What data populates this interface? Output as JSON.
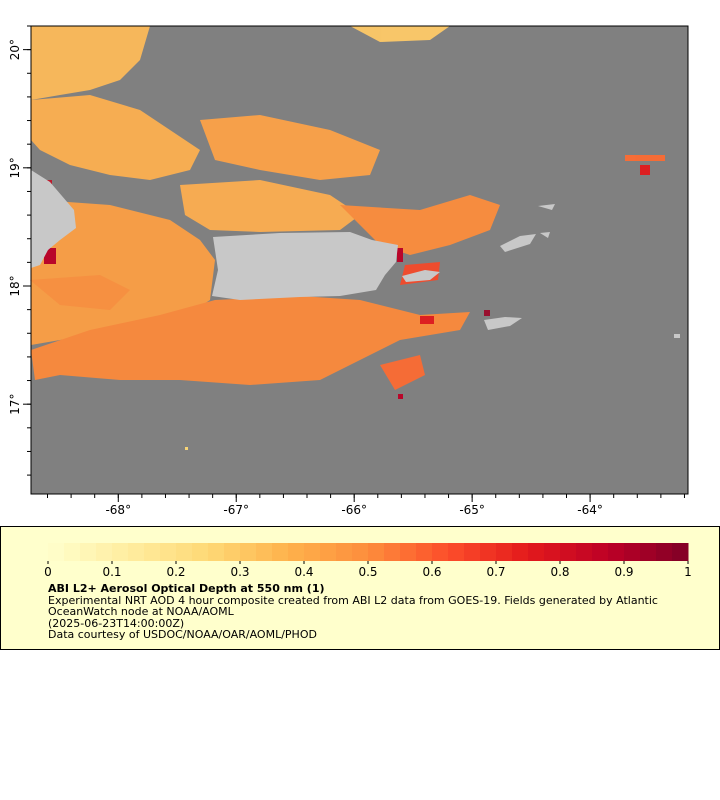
{
  "map": {
    "lonlim": [
      -68.74,
      -63.17
    ],
    "latlim": [
      16.24,
      20.2
    ],
    "lon_ticks": [
      {
        "value": -68,
        "label": "-68°"
      },
      {
        "value": -67,
        "label": "-67°"
      },
      {
        "value": -66,
        "label": "-66°"
      },
      {
        "value": -65,
        "label": "-65°"
      },
      {
        "value": -64,
        "label": "-64°"
      }
    ],
    "lat_ticks": [
      {
        "value": 17,
        "label": "17°"
      },
      {
        "value": 18,
        "label": "18°"
      },
      {
        "value": 19,
        "label": "19°"
      },
      {
        "value": 20,
        "label": "20°"
      }
    ]
  },
  "colorbar": {
    "range": [
      0,
      1
    ],
    "ticks": [
      0,
      0.1,
      0.2,
      0.3,
      0.4,
      0.5,
      0.6,
      0.7,
      0.8,
      0.9,
      1
    ],
    "colormap": [
      "#ffffcc",
      "#ffeda0",
      "#fed976",
      "#feb24c",
      "#fd8d3c",
      "#fc4e2a",
      "#e31a1c",
      "#bd0026",
      "#800026"
    ]
  },
  "legend": {
    "title": "ABI L2+ Aerosol Optical Depth at 550 nm (1)",
    "description": "Experimental NRT AOD 4 hour composite created from ABI L2 data from GOES-19. Fields generated by Atlantic OceanWatch node at NOAA/AOML",
    "time": "(2025-06-23T14:00:00Z)",
    "credit": "Data courtesy of USDOC/NOAA/OAR/AOML/PHOD"
  }
}
